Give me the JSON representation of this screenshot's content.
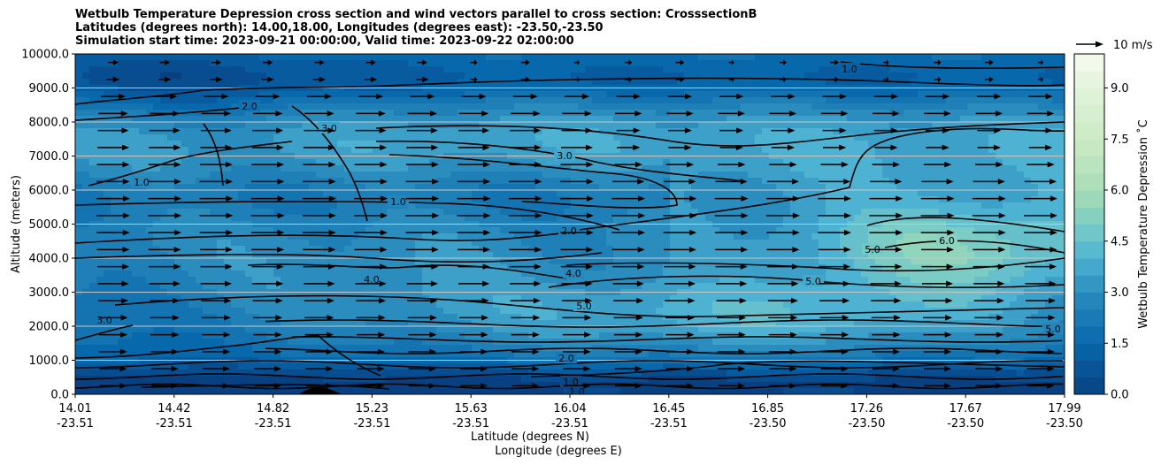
{
  "chart_data": {
    "type": "heatmap",
    "title_lines": [
      "Wetbulb Temperature Depression cross section and wind vectors parallel to cross section: CrosssectionB",
      "Latitudes (degrees north): 14.00,18.00, Longitudes (degrees east): -23.50,-23.50",
      "Simulation start time: 2023-09-21 00:00:00, Valid time: 2023-09-22 02:00:00"
    ],
    "ylabel": "Altitude (meters)",
    "xlabel_lines": [
      "Latitude (degrees N)",
      "Longitude (degrees E)"
    ],
    "ylim": [
      0,
      10000
    ],
    "yticks": [
      "0.0",
      "1000.0",
      "2000.0",
      "3000.0",
      "4000.0",
      "5000.0",
      "6000.0",
      "7000.0",
      "8000.0",
      "9000.0",
      "10000.0"
    ],
    "xticks": [
      {
        "lat": "14.01",
        "lon": "-23.51"
      },
      {
        "lat": "14.42",
        "lon": "-23.51"
      },
      {
        "lat": "14.82",
        "lon": "-23.51"
      },
      {
        "lat": "15.23",
        "lon": "-23.51"
      },
      {
        "lat": "15.63",
        "lon": "-23.51"
      },
      {
        "lat": "16.04",
        "lon": "-23.51"
      },
      {
        "lat": "16.45",
        "lon": "-23.51"
      },
      {
        "lat": "16.85",
        "lon": "-23.50"
      },
      {
        "lat": "17.26",
        "lon": "-23.50"
      },
      {
        "lat": "17.67",
        "lon": "-23.50"
      },
      {
        "lat": "17.99",
        "lon": "-23.50"
      }
    ],
    "colorbar": {
      "label": "Wetbulb Temperature Depression ˚C",
      "range": [
        0,
        10
      ],
      "step": 0.5,
      "ticks": [
        "0.0",
        "1.5",
        "3.0",
        "4.5",
        "6.0",
        "7.5",
        "9.0"
      ],
      "colormap": "GnBu_r"
    },
    "contour_levels": [
      1.0,
      2.0,
      3.0,
      4.0,
      5.0,
      6.0
    ],
    "contour_labels": [
      "1.0",
      "2.0",
      "3.0",
      "4.0",
      "5.0",
      "6.0"
    ],
    "wind_key": {
      "label": "10 m/s",
      "speed": 10
    },
    "wind_direction": "parallel to cross section, from south to north (positive x)",
    "grid": "horizontal lines at y ticks"
  }
}
